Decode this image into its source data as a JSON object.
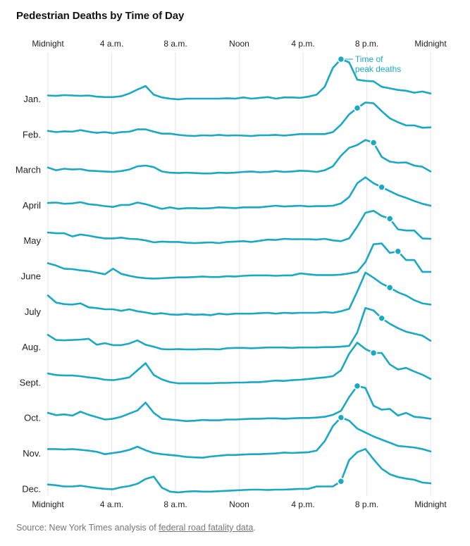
{
  "title": "Pedestrian Deaths by Time of Day",
  "source": {
    "prefix": "Source: New York Times analysis of ",
    "link_text": "federal road fatality data",
    "suffix": "."
  },
  "colors": {
    "line": "#1aa8c4",
    "grid": "#e6e6e6",
    "text": "#222222",
    "annotation": "#1aa8c4"
  },
  "chart_data": {
    "type": "line",
    "layout": "small-multiples",
    "x_ticks": [
      {
        "hour": 0,
        "label": "Midnight"
      },
      {
        "hour": 4,
        "label": "4 a.m."
      },
      {
        "hour": 8,
        "label": "8 a.m."
      },
      {
        "hour": 12,
        "label": "Noon"
      },
      {
        "hour": 16,
        "label": "4 p.m."
      },
      {
        "hour": 20,
        "label": "8 p.m."
      },
      {
        "hour": 24,
        "label": "Midnight"
      }
    ],
    "grid": true,
    "annotation": {
      "text_line1": "Time of",
      "text_line2": "peak deaths",
      "series": "Jan."
    },
    "series": [
      {
        "name": "Jan.",
        "peak_hour": 18.5,
        "values": [
          0.08,
          0.07,
          0.09,
          0.08,
          0.07,
          0.08,
          0.05,
          0.04,
          0.04,
          0.06,
          0.13,
          0.23,
          0.32,
          0.1,
          0.03,
          0.0,
          -0.02,
          0.0,
          0.0,
          0.0,
          0.0,
          0.0,
          0.01,
          0.0,
          0.03,
          0.0,
          0.02,
          0.04,
          0.0,
          0.03,
          0.03,
          0.02,
          0.05,
          0.1,
          0.3,
          0.78,
          1.0,
          0.92,
          0.48,
          0.45,
          0.44,
          0.3,
          0.26,
          0.22,
          0.2,
          0.15,
          0.18,
          0.13
        ]
      },
      {
        "name": "Feb.",
        "peak_hour": 19.5,
        "values": [
          0.08,
          0.05,
          0.07,
          0.06,
          0.1,
          0.06,
          0.03,
          0.05,
          0.02,
          0.05,
          0.06,
          0.12,
          0.12,
          0.06,
          0.01,
          0.01,
          -0.02,
          -0.04,
          -0.05,
          -0.03,
          -0.04,
          -0.02,
          -0.04,
          -0.03,
          -0.04,
          -0.05,
          -0.03,
          -0.03,
          -0.02,
          -0.04,
          -0.02,
          0.0,
          0.0,
          0.0,
          0.0,
          0.05,
          0.24,
          0.5,
          0.66,
          0.8,
          0.78,
          0.58,
          0.4,
          0.3,
          0.22,
          0.22,
          0.16,
          0.17
        ]
      },
      {
        "name": "March",
        "peak_hour": 20.5,
        "values": [
          0.05,
          -0.02,
          0.02,
          0.0,
          0.01,
          -0.03,
          -0.04,
          -0.05,
          -0.06,
          -0.04,
          0.0,
          0.08,
          0.1,
          0.06,
          -0.05,
          -0.08,
          -0.09,
          -0.08,
          -0.09,
          -0.1,
          -0.1,
          -0.08,
          -0.09,
          -0.08,
          -0.06,
          -0.05,
          -0.07,
          -0.06,
          -0.04,
          -0.06,
          -0.05,
          -0.03,
          -0.04,
          -0.06,
          -0.02,
          0.08,
          0.35,
          0.55,
          0.62,
          0.75,
          0.68,
          0.32,
          0.2,
          0.17,
          0.18,
          0.1,
          0.07,
          -0.05
        ]
      },
      {
        "name": "April",
        "peak_hour": 21.0,
        "values": [
          0.05,
          0.06,
          0.03,
          0.04,
          0.07,
          0.02,
          0.0,
          -0.03,
          -0.05,
          0.0,
          0.0,
          0.06,
          0.02,
          -0.04,
          -0.1,
          -0.06,
          -0.1,
          -0.08,
          -0.08,
          -0.09,
          -0.08,
          -0.06,
          -0.07,
          -0.08,
          -0.06,
          -0.06,
          -0.06,
          -0.04,
          -0.02,
          -0.04,
          -0.03,
          -0.02,
          -0.04,
          -0.03,
          -0.03,
          -0.02,
          0.04,
          0.2,
          0.55,
          0.7,
          0.55,
          0.45,
          0.35,
          0.25,
          0.18,
          0.1,
          0.03,
          -0.02
        ]
      },
      {
        "name": "May",
        "peak_hour": 21.5,
        "values": [
          0.2,
          0.18,
          0.18,
          0.1,
          0.15,
          0.12,
          0.08,
          0.05,
          0.05,
          0.07,
          0.04,
          0.03,
          0.0,
          -0.05,
          -0.03,
          -0.04,
          -0.04,
          -0.06,
          -0.07,
          -0.06,
          -0.05,
          -0.07,
          -0.04,
          -0.03,
          -0.02,
          -0.04,
          -0.01,
          0.02,
          0.01,
          0.04,
          0.03,
          0.03,
          0.03,
          0.02,
          0.04,
          0.0,
          -0.02,
          0.05,
          0.35,
          0.7,
          0.75,
          0.62,
          0.55,
          0.28,
          0.25,
          0.25,
          0.05,
          0.04
        ]
      },
      {
        "name": "June",
        "peak_hour": 22.0,
        "values": [
          0.32,
          0.26,
          0.18,
          0.17,
          0.14,
          0.12,
          0.08,
          0.04,
          0.18,
          0.05,
          0.0,
          -0.04,
          -0.06,
          -0.07,
          -0.06,
          -0.05,
          -0.04,
          -0.04,
          -0.03,
          -0.02,
          -0.03,
          -0.03,
          -0.01,
          -0.02,
          0.0,
          0.01,
          0.01,
          0.01,
          0.0,
          0.01,
          0.01,
          0.06,
          0.04,
          0.02,
          0.02,
          0.02,
          0.03,
          0.06,
          0.1,
          0.35,
          0.8,
          0.82,
          0.58,
          0.62,
          0.4,
          0.4,
          0.1,
          0.1
        ]
      },
      {
        "name": "July",
        "peak_hour": 21.5,
        "values": [
          0.4,
          0.22,
          0.18,
          0.17,
          0.2,
          0.1,
          0.08,
          0.05,
          0.05,
          0.01,
          0.05,
          0.0,
          -0.03,
          -0.07,
          -0.05,
          -0.08,
          -0.09,
          -0.07,
          -0.09,
          -0.08,
          -0.1,
          -0.06,
          -0.08,
          -0.06,
          -0.06,
          -0.06,
          -0.05,
          -0.04,
          -0.06,
          -0.04,
          -0.05,
          -0.04,
          -0.04,
          -0.04,
          -0.02,
          -0.04,
          0.0,
          0.06,
          0.5,
          0.98,
          0.85,
          0.7,
          0.6,
          0.48,
          0.4,
          0.28,
          0.2,
          0.17
        ]
      },
      {
        "name": "Aug.",
        "peak_hour": 21.0,
        "values": [
          0.3,
          0.17,
          0.16,
          0.17,
          0.18,
          0.2,
          0.05,
          0.09,
          0.04,
          0.04,
          0.08,
          0.16,
          0.05,
          0.0,
          -0.06,
          -0.07,
          -0.06,
          -0.07,
          -0.07,
          -0.06,
          -0.06,
          -0.07,
          -0.04,
          -0.03,
          -0.03,
          -0.04,
          -0.03,
          -0.02,
          -0.02,
          -0.02,
          -0.03,
          -0.02,
          -0.02,
          -0.02,
          -0.01,
          -0.01,
          0.0,
          0.02,
          0.36,
          0.98,
          0.92,
          0.72,
          0.58,
          0.47,
          0.38,
          0.33,
          0.28,
          0.15
        ]
      },
      {
        "name": "Sept.",
        "peak_hour": 20.5,
        "values": [
          0.22,
          0.18,
          0.17,
          0.17,
          0.15,
          0.12,
          0.1,
          0.06,
          0.05,
          0.08,
          0.12,
          0.3,
          0.48,
          0.18,
          0.07,
          0.0,
          -0.03,
          -0.03,
          -0.03,
          -0.03,
          -0.03,
          -0.02,
          -0.02,
          -0.01,
          -0.01,
          0.0,
          0.0,
          0.02,
          0.04,
          0.03,
          0.05,
          0.06,
          0.08,
          0.1,
          0.12,
          0.15,
          0.3,
          0.72,
          1.0,
          0.84,
          0.74,
          0.74,
          0.45,
          0.32,
          0.36,
          0.27,
          0.19,
          0.08
        ]
      },
      {
        "name": "Oct.",
        "peak_hour": 19.5,
        "values": [
          0.12,
          0.06,
          0.08,
          0.05,
          0.15,
          0.07,
          0.01,
          -0.05,
          -0.03,
          0.02,
          0.1,
          0.18,
          0.38,
          0.12,
          -0.03,
          -0.05,
          -0.07,
          -0.09,
          -0.08,
          -0.06,
          -0.07,
          -0.07,
          -0.05,
          -0.05,
          -0.04,
          -0.03,
          -0.03,
          -0.02,
          -0.02,
          -0.03,
          -0.02,
          -0.01,
          -0.01,
          0.0,
          0.02,
          0.07,
          0.17,
          0.52,
          0.8,
          0.75,
          0.3,
          0.2,
          0.22,
          0.05,
          0.12,
          0.02,
          0.0,
          -0.03
        ]
      },
      {
        "name": "Nov.",
        "peak_hour": 18.5,
        "values": [
          0.1,
          0.1,
          0.09,
          0.1,
          0.08,
          0.06,
          0.03,
          -0.03,
          0.0,
          0.03,
          0.08,
          0.16,
          0.07,
          0.0,
          -0.03,
          -0.05,
          -0.07,
          -0.1,
          -0.11,
          -0.12,
          -0.09,
          -0.07,
          -0.05,
          -0.05,
          -0.04,
          -0.03,
          -0.03,
          -0.02,
          -0.01,
          0.01,
          0.0,
          0.01,
          0.02,
          0.06,
          0.3,
          0.68,
          0.9,
          0.82,
          0.62,
          0.52,
          0.42,
          0.34,
          0.26,
          0.18,
          0.16,
          0.14,
          0.1,
          0.04
        ]
      },
      {
        "name": "Dec.",
        "peak_hour": 18.5,
        "values": [
          0.1,
          0.08,
          0.05,
          0.05,
          0.07,
          0.04,
          0.01,
          -0.01,
          -0.02,
          0.03,
          0.06,
          0.12,
          0.24,
          0.3,
          0.02,
          -0.08,
          -0.1,
          -0.08,
          -0.07,
          -0.08,
          -0.08,
          -0.07,
          -0.06,
          -0.05,
          -0.04,
          -0.03,
          -0.03,
          -0.04,
          -0.03,
          -0.03,
          -0.02,
          -0.01,
          -0.01,
          0.05,
          0.05,
          0.05,
          0.18,
          0.72,
          0.92,
          1.0,
          0.74,
          0.5,
          0.36,
          0.29,
          0.25,
          0.22,
          0.15,
          0.13
        ]
      }
    ]
  }
}
